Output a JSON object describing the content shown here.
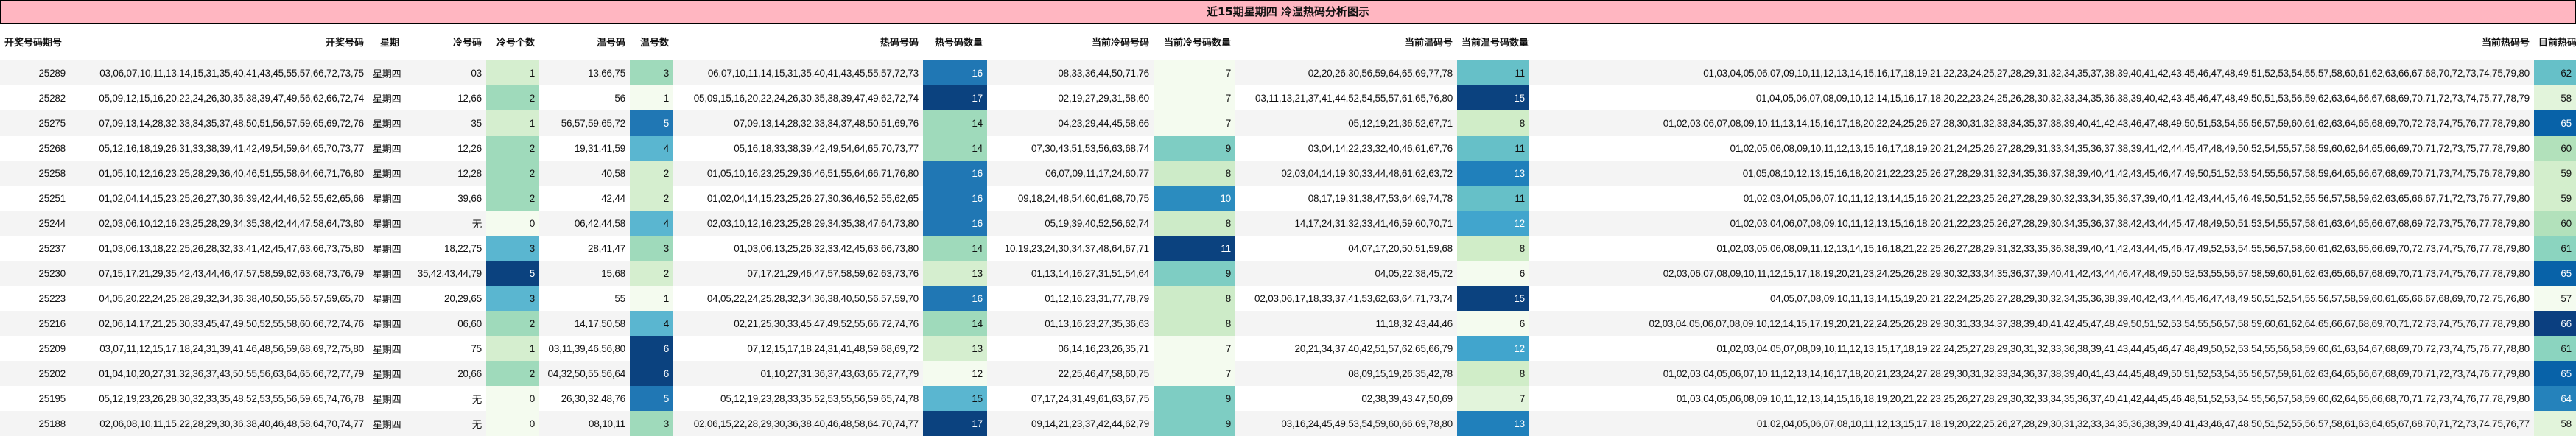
{
  "title": "近15期星期四 冷温热码分析图示",
  "headers": [
    "开奖号码期号",
    "开奖号码",
    "星期",
    "冷号码",
    "冷号个数",
    "温号码",
    "温号数",
    "热码号码",
    "热号码数量",
    "当前冷码号码",
    "当前冷号码数量",
    "当前温码号",
    "当前温号码数量",
    "当前热码号",
    "目前热码号数量"
  ],
  "rows": [
    {
      "period": "25289",
      "numbers": "03,06,07,10,11,13,14,15,31,35,40,41,43,45,55,57,66,72,73,75",
      "weekday": "星期四",
      "cold": "03",
      "cold_count": "1",
      "warm": "13,66,75",
      "warm_count": "3",
      "hot": "06,07,10,11,14,15,31,35,40,41,43,45,55,57,72,73",
      "hot_count": "16",
      "cur_cold": "08,33,36,44,50,71,76",
      "cur_cold_count": "7",
      "cur_warm": "02,20,26,30,56,59,64,65,69,77,78",
      "cur_warm_count": "11",
      "cur_hot": "01,03,04,05,06,07,09,10,11,12,13,14,15,16,17,18,19,21,22,23,24,25,27,28,29,31,32,34,35,37,38,39,40,41,42,43,45,46,47,48,49,51,52,53,54,55,57,58,60,61,62,63,66,67,68,70,72,73,74,75,79,80",
      "cur_hot_count": "62"
    },
    {
      "period": "25282",
      "numbers": "05,09,12,15,16,20,22,24,26,30,35,38,39,47,49,56,62,66,72,74",
      "weekday": "星期四",
      "cold": "12,66",
      "cold_count": "2",
      "warm": "56",
      "warm_count": "1",
      "hot": "05,09,15,16,20,22,24,26,30,35,38,39,47,49,62,72,74",
      "hot_count": "17",
      "cur_cold": "02,19,27,29,31,58,60",
      "cur_cold_count": "7",
      "cur_warm": "03,11,13,21,37,41,44,52,54,55,57,61,65,76,80",
      "cur_warm_count": "15",
      "cur_hot": "01,04,05,06,07,08,09,10,12,14,15,16,17,18,20,22,23,24,25,26,28,30,32,33,34,35,36,38,39,40,42,43,45,46,47,48,49,50,51,53,56,59,62,63,64,66,67,68,69,70,71,72,73,74,75,77,78,79",
      "cur_hot_count": "58"
    },
    {
      "period": "25275",
      "numbers": "07,09,13,14,28,32,33,34,35,37,48,50,51,56,57,59,65,69,72,76",
      "weekday": "星期四",
      "cold": "35",
      "cold_count": "1",
      "warm": "56,57,59,65,72",
      "warm_count": "5",
      "hot": "07,09,13,14,28,32,33,34,37,48,50,51,69,76",
      "hot_count": "14",
      "cur_cold": "04,23,29,44,45,58,66",
      "cur_cold_count": "7",
      "cur_warm": "05,12,19,21,36,52,67,71",
      "cur_warm_count": "8",
      "cur_hot": "01,02,03,06,07,08,09,10,11,13,14,15,16,17,18,20,22,24,25,26,27,28,30,31,32,33,34,35,37,38,39,40,41,42,43,46,47,48,49,50,51,53,54,55,56,57,59,60,61,62,63,64,65,68,69,70,72,73,74,75,76,77,78,79,80",
      "cur_hot_count": "65"
    },
    {
      "period": "25268",
      "numbers": "05,12,16,18,19,26,31,33,38,39,41,42,49,54,59,64,65,70,73,77",
      "weekday": "星期四",
      "cold": "12,26",
      "cold_count": "2",
      "warm": "19,31,41,59",
      "warm_count": "4",
      "hot": "05,16,18,33,38,39,42,49,54,64,65,70,73,77",
      "hot_count": "14",
      "cur_cold": "07,30,43,51,53,56,63,68,74",
      "cur_cold_count": "9",
      "cur_warm": "03,04,14,22,23,32,40,46,61,67,76",
      "cur_warm_count": "11",
      "cur_hot": "01,02,05,06,08,09,10,11,12,13,15,16,17,18,19,20,21,24,25,26,27,28,29,31,33,34,35,36,37,38,39,41,42,44,45,47,48,49,50,52,54,55,57,58,59,60,62,64,65,66,69,70,71,72,73,75,77,78,79,80",
      "cur_hot_count": "60"
    },
    {
      "period": "25258",
      "numbers": "01,05,10,12,16,23,25,28,29,36,40,46,51,55,58,64,66,71,76,80",
      "weekday": "星期四",
      "cold": "12,28",
      "cold_count": "2",
      "warm": "40,58",
      "warm_count": "2",
      "hot": "01,05,10,16,23,25,29,36,46,51,55,64,66,71,76,80",
      "hot_count": "16",
      "cur_cold": "06,07,09,11,17,24,60,77",
      "cur_cold_count": "8",
      "cur_warm": "02,03,04,14,19,30,33,44,48,61,62,63,72",
      "cur_warm_count": "13",
      "cur_hot": "01,05,08,10,12,13,15,16,18,20,21,22,23,25,26,27,28,29,31,32,34,35,36,37,38,39,40,41,42,43,45,46,47,49,50,51,52,53,54,55,56,57,58,59,64,65,66,67,68,69,70,71,73,74,75,76,78,79,80",
      "cur_hot_count": "59"
    },
    {
      "period": "25251",
      "numbers": "01,02,04,14,15,23,25,26,27,30,36,39,42,44,46,52,55,62,65,66",
      "weekday": "星期四",
      "cold": "39,66",
      "cold_count": "2",
      "warm": "42,44",
      "warm_count": "2",
      "hot": "01,02,04,14,15,23,25,26,27,30,36,46,52,55,62,65",
      "hot_count": "16",
      "cur_cold": "09,18,24,48,54,60,61,68,70,75",
      "cur_cold_count": "10",
      "cur_warm": "08,17,19,31,38,47,53,64,69,74,78",
      "cur_warm_count": "11",
      "cur_hot": "01,02,03,04,05,06,07,10,11,12,13,14,15,16,20,21,22,23,25,26,27,28,29,30,32,33,34,35,36,37,39,40,41,42,43,44,45,46,49,50,51,52,55,56,57,58,59,62,63,65,66,67,71,72,73,76,77,79,80",
      "cur_hot_count": "59"
    },
    {
      "period": "25244",
      "numbers": "02,03,06,10,12,16,23,25,28,29,34,35,38,42,44,47,58,64,73,80",
      "weekday": "星期四",
      "cold": "无",
      "cold_count": "0",
      "warm": "06,42,44,58",
      "warm_count": "4",
      "hot": "02,03,10,12,16,23,25,28,29,34,35,38,47,64,73,80",
      "hot_count": "16",
      "cur_cold": "05,19,39,40,52,56,62,74",
      "cur_cold_count": "8",
      "cur_warm": "14,17,24,31,32,33,41,46,59,60,70,71",
      "cur_warm_count": "12",
      "cur_hot": "01,02,03,04,06,07,08,09,10,11,12,13,15,16,18,20,21,22,23,25,26,27,28,29,30,34,35,36,37,38,42,43,44,45,47,48,49,50,51,53,54,55,57,58,61,63,64,65,66,67,68,69,72,73,75,76,77,78,79,80",
      "cur_hot_count": "60"
    },
    {
      "period": "25237",
      "numbers": "01,03,06,13,18,22,25,26,28,32,33,41,42,45,47,63,66,73,75,80",
      "weekday": "星期四",
      "cold": "18,22,75",
      "cold_count": "3",
      "warm": "28,41,47",
      "warm_count": "3",
      "hot": "01,03,06,13,25,26,32,33,42,45,63,66,73,80",
      "hot_count": "14",
      "cur_cold": "10,19,23,24,30,34,37,48,64,67,71",
      "cur_cold_count": "11",
      "cur_warm": "04,07,17,20,50,51,59,68",
      "cur_warm_count": "8",
      "cur_hot": "01,02,03,05,06,08,09,11,12,13,14,15,16,18,21,22,25,26,27,28,29,31,32,33,35,36,38,39,40,41,42,43,44,45,46,47,49,52,53,54,55,56,57,58,60,61,62,63,65,66,69,70,72,73,74,75,76,77,78,79,80",
      "cur_hot_count": "61"
    },
    {
      "period": "25230",
      "numbers": "07,15,17,21,29,35,42,43,44,46,47,57,58,59,62,63,68,73,76,79",
      "weekday": "星期四",
      "cold": "35,42,43,44,79",
      "cold_count": "5",
      "warm": "15,68",
      "warm_count": "2",
      "hot": "07,17,21,29,46,47,57,58,59,62,63,73,76",
      "hot_count": "13",
      "cur_cold": "01,13,14,16,27,31,51,54,64",
      "cur_cold_count": "9",
      "cur_warm": "04,05,22,38,45,72",
      "cur_warm_count": "6",
      "cur_hot": "02,03,06,07,08,09,10,11,12,15,17,18,19,20,21,23,24,25,26,28,29,30,32,33,34,35,36,37,39,40,41,42,43,44,46,47,48,49,50,52,53,55,56,57,58,59,60,61,62,63,65,66,67,68,69,70,71,73,74,75,76,77,78,79,80",
      "cur_hot_count": "65"
    },
    {
      "period": "25223",
      "numbers": "04,05,20,22,24,25,28,29,32,34,36,38,40,50,55,56,57,59,65,70",
      "weekday": "星期四",
      "cold": "20,29,65",
      "cold_count": "3",
      "warm": "55",
      "warm_count": "1",
      "hot": "04,05,22,24,25,28,32,34,36,38,40,50,56,57,59,70",
      "hot_count": "16",
      "cur_cold": "01,12,16,23,31,77,78,79",
      "cur_cold_count": "8",
      "cur_warm": "02,03,06,17,18,33,37,41,53,62,63,64,71,73,74",
      "cur_warm_count": "15",
      "cur_hot": "04,05,07,08,09,10,11,13,14,15,19,20,21,22,24,25,26,27,28,29,30,32,34,35,36,38,39,40,42,43,44,45,46,47,48,49,50,51,52,54,55,56,57,58,59,60,61,65,66,67,68,69,70,72,75,76,80",
      "cur_hot_count": "57"
    },
    {
      "period": "25216",
      "numbers": "02,06,14,17,21,25,30,33,45,47,49,50,52,55,58,60,66,72,74,76",
      "weekday": "星期四",
      "cold": "06,60",
      "cold_count": "2",
      "warm": "14,17,50,58",
      "warm_count": "4",
      "hot": "02,21,25,30,33,45,47,49,52,55,66,72,74,76",
      "hot_count": "14",
      "cur_cold": "01,13,16,23,27,35,36,63",
      "cur_cold_count": "8",
      "cur_warm": "11,18,32,43,44,46",
      "cur_warm_count": "6",
      "cur_hot": "02,03,04,05,06,07,08,09,10,12,14,15,17,19,20,21,22,24,25,26,28,29,30,31,33,34,37,38,39,40,41,42,45,47,48,49,50,51,52,53,54,55,56,57,58,59,60,61,62,64,65,66,67,68,69,70,71,72,73,74,75,76,77,78,79,80",
      "cur_hot_count": "66"
    },
    {
      "period": "25209",
      "numbers": "03,07,11,12,15,17,18,24,31,39,41,46,48,56,59,68,69,72,75,80",
      "weekday": "星期四",
      "cold": "75",
      "cold_count": "1",
      "warm": "03,11,39,46,56,80",
      "warm_count": "6",
      "hot": "07,12,15,17,18,24,31,41,48,59,68,69,72",
      "hot_count": "13",
      "cur_cold": "06,14,16,23,26,35,71",
      "cur_cold_count": "7",
      "cur_warm": "20,21,34,37,40,42,51,57,62,65,66,79",
      "cur_warm_count": "12",
      "cur_hot": "01,02,03,04,05,07,08,09,10,11,12,13,15,17,18,19,22,24,25,27,28,29,30,31,32,33,36,38,39,41,43,44,45,46,47,48,49,50,52,53,54,55,56,58,59,60,61,63,64,67,68,69,70,72,73,74,75,76,77,78,80",
      "cur_hot_count": "61"
    },
    {
      "period": "25202",
      "numbers": "01,04,10,20,27,31,32,36,37,43,50,55,56,63,64,65,66,72,77,79",
      "weekday": "星期四",
      "cold": "20,66",
      "cold_count": "2",
      "warm": "04,32,50,55,56,64",
      "warm_count": "6",
      "hot": "01,10,27,31,36,37,43,63,65,72,77,79",
      "hot_count": "12",
      "cur_cold": "22,25,46,47,58,60,75",
      "cur_cold_count": "7",
      "cur_warm": "08,09,15,19,26,35,42,78",
      "cur_warm_count": "8",
      "cur_hot": "01,02,03,04,05,06,07,10,11,12,13,14,16,17,18,20,21,23,24,27,28,29,30,31,32,33,34,36,37,38,39,40,41,43,44,45,48,49,50,51,52,53,54,55,56,57,59,61,62,63,64,65,66,67,68,69,70,71,72,73,74,76,77,79,80",
      "cur_hot_count": "65"
    },
    {
      "period": "25195",
      "numbers": "05,12,19,23,26,28,30,32,33,35,48,52,53,55,56,59,65,74,76,78",
      "weekday": "星期四",
      "cold": "无",
      "cold_count": "0",
      "warm": "26,30,32,48,76",
      "warm_count": "5",
      "hot": "05,12,19,23,28,33,35,52,53,55,56,59,65,74,78",
      "hot_count": "15",
      "cur_cold": "07,17,24,31,49,61,63,67,75",
      "cur_cold_count": "9",
      "cur_warm": "02,38,39,43,47,50,69",
      "cur_warm_count": "7",
      "cur_hot": "01,03,04,05,06,08,09,10,11,12,13,14,15,16,18,19,20,21,22,23,25,26,27,28,29,30,32,33,34,35,36,37,40,41,42,44,45,46,48,51,52,53,54,55,56,57,58,59,60,62,64,65,66,68,70,71,72,73,74,76,77,78,79,80",
      "cur_hot_count": "64"
    },
    {
      "period": "25188",
      "numbers": "02,06,08,10,11,15,22,28,29,30,36,38,40,46,48,58,64,70,74,77",
      "weekday": "星期四",
      "cold": "无",
      "cold_count": "0",
      "warm": "08,10,11",
      "warm_count": "3",
      "hot": "02,06,15,22,28,29,30,36,38,40,46,48,58,64,70,74,77",
      "hot_count": "17",
      "cur_cold": "09,14,21,23,37,42,44,62,79",
      "cur_cold_count": "9",
      "cur_warm": "03,16,24,45,49,53,54,59,60,66,69,78,80",
      "cur_warm_count": "13",
      "cur_hot": "01,02,04,05,06,07,08,10,11,12,13,15,17,18,19,20,22,25,26,27,28,29,30,31,32,33,34,35,36,38,39,40,41,43,46,47,48,50,51,52,55,56,57,58,61,63,64,65,67,68,70,71,72,73,74,75,76,77",
      "cur_hot_count": "58"
    }
  ],
  "heat_colors": {
    "cold_count": {
      "0": "#f4fbef",
      "1": "#d5eecf",
      "2": "#9fdabb",
      "3": "#5ab6d0",
      "5": "#0b427f"
    },
    "warm_count": {
      "1": "#f4fbef",
      "2": "#d5eecf",
      "3": "#9fdabb",
      "4": "#5ab6d0",
      "5": "#2077b4",
      "6": "#0b427f"
    },
    "hot_count": {
      "12": "#f4fbef",
      "13": "#d5eecf",
      "14": "#9fdabb",
      "15": "#5ab6d0",
      "16": "#2077b4",
      "17": "#0b427f"
    },
    "cur_cold_count": {
      "7": "#f4fbef",
      "8": "#cdebc8",
      "9": "#7ecdc3",
      "10": "#2b8cbf",
      "11": "#0b427f"
    },
    "cur_warm_count": {
      "6": "#f4fbef",
      "7": "#e2f4db",
      "8": "#d0edc8",
      "11": "#66c0c8",
      "12": "#41a5cd",
      "13": "#2080bb",
      "15": "#0b427f"
    },
    "cur_hot_count": {
      "57": "#f4fbef",
      "58": "#e2f4db",
      "59": "#d3eecc",
      "60": "#b2e1bb",
      "61": "#8bd4bf",
      "62": "#66c0c8",
      "64": "#2582bb",
      "65": "#0862a8",
      "66": "#0b3f80"
    }
  },
  "dark_threshold_colors": [
    "#0b427f",
    "#2077b4",
    "#2b8cbf",
    "#2080bb",
    "#41a5cd",
    "#2582bb",
    "#0862a8",
    "#0b3f80"
  ]
}
